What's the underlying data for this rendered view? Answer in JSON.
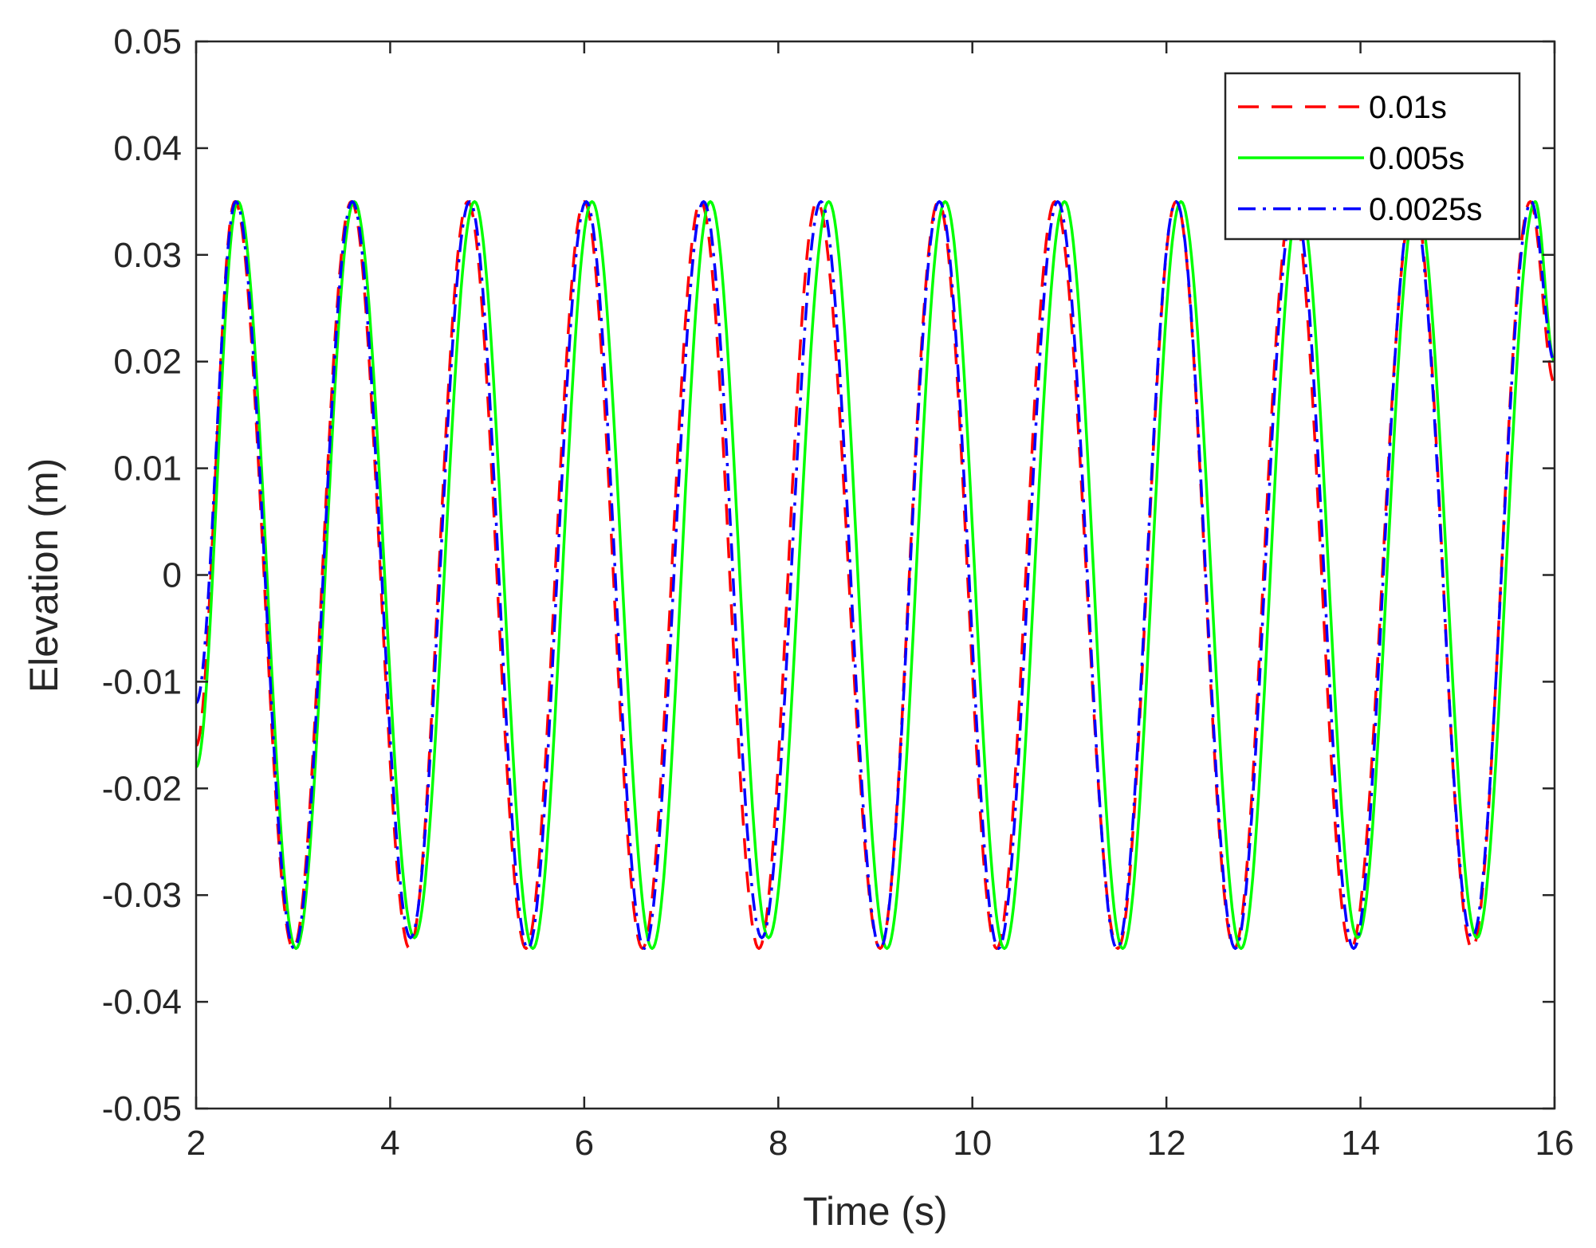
{
  "chart_data": {
    "type": "line",
    "title": "",
    "xlabel": "Time (s)",
    "ylabel": "Elevation (m)",
    "xlim": [
      2,
      16
    ],
    "ylim": [
      -0.05,
      0.05
    ],
    "xticks": [
      2,
      4,
      6,
      8,
      10,
      12,
      14,
      16
    ],
    "yticks": [
      -0.05,
      -0.04,
      -0.03,
      -0.02,
      -0.01,
      0,
      0.01,
      0.02,
      0.03,
      0.04,
      0.05
    ],
    "xtick_labels": [
      "2",
      "4",
      "6",
      "8",
      "10",
      "12",
      "14",
      "16"
    ],
    "ytick_labels": [
      "-0.05",
      "-0.04",
      "-0.03",
      "-0.02",
      "-0.01",
      "0",
      "0.01",
      "0.02",
      "0.03",
      "0.04",
      "0.05"
    ],
    "grid": false,
    "legend": {
      "position": "top-right"
    },
    "series": [
      {
        "name": "0.01s",
        "color": "#ff0000",
        "line_style": "dashed",
        "x": [
          2.0,
          2.4,
          3.0,
          3.6,
          4.2,
          4.8,
          5.4,
          6.0,
          6.6,
          7.2,
          7.8,
          8.4,
          9.05,
          9.65,
          10.25,
          10.85,
          11.5,
          12.1,
          12.7,
          13.3,
          13.9,
          14.55,
          15.15,
          15.75,
          16.0
        ],
        "y": [
          -0.016,
          0.035,
          -0.035,
          0.035,
          -0.035,
          0.035,
          -0.035,
          0.035,
          -0.035,
          0.035,
          -0.035,
          0.035,
          -0.035,
          0.035,
          -0.035,
          0.035,
          -0.035,
          0.035,
          -0.035,
          0.035,
          -0.035,
          0.035,
          -0.035,
          0.035,
          0.018
        ]
      },
      {
        "name": "0.005s",
        "color": "#00ff00",
        "line_style": "solid",
        "x": [
          2.0,
          2.43,
          3.03,
          3.63,
          4.25,
          4.87,
          5.47,
          6.08,
          6.7,
          7.3,
          7.9,
          8.52,
          9.12,
          9.72,
          10.33,
          10.95,
          11.55,
          12.15,
          12.77,
          13.37,
          13.97,
          14.58,
          15.2,
          15.8,
          16.0
        ],
        "y": [
          -0.018,
          0.035,
          -0.035,
          0.035,
          -0.034,
          0.035,
          -0.035,
          0.035,
          -0.035,
          0.035,
          -0.034,
          0.035,
          -0.035,
          0.035,
          -0.035,
          0.035,
          -0.035,
          0.035,
          -0.035,
          0.035,
          -0.034,
          0.035,
          -0.034,
          0.035,
          0.02
        ]
      },
      {
        "name": "0.0025s",
        "color": "#0000ff",
        "line_style": "dash-dot",
        "x": [
          2.0,
          2.41,
          3.01,
          3.61,
          4.21,
          4.82,
          5.42,
          6.02,
          6.62,
          7.23,
          7.83,
          8.44,
          9.05,
          9.66,
          10.27,
          10.88,
          11.49,
          12.1,
          12.71,
          13.32,
          13.93,
          14.54,
          15.15,
          15.76,
          16.0
        ],
        "y": [
          -0.012,
          0.035,
          -0.035,
          0.035,
          -0.034,
          0.035,
          -0.035,
          0.035,
          -0.035,
          0.035,
          -0.034,
          0.035,
          -0.035,
          0.035,
          -0.035,
          0.035,
          -0.035,
          0.035,
          -0.035,
          0.035,
          -0.035,
          0.035,
          -0.034,
          0.035,
          0.02
        ]
      }
    ]
  }
}
